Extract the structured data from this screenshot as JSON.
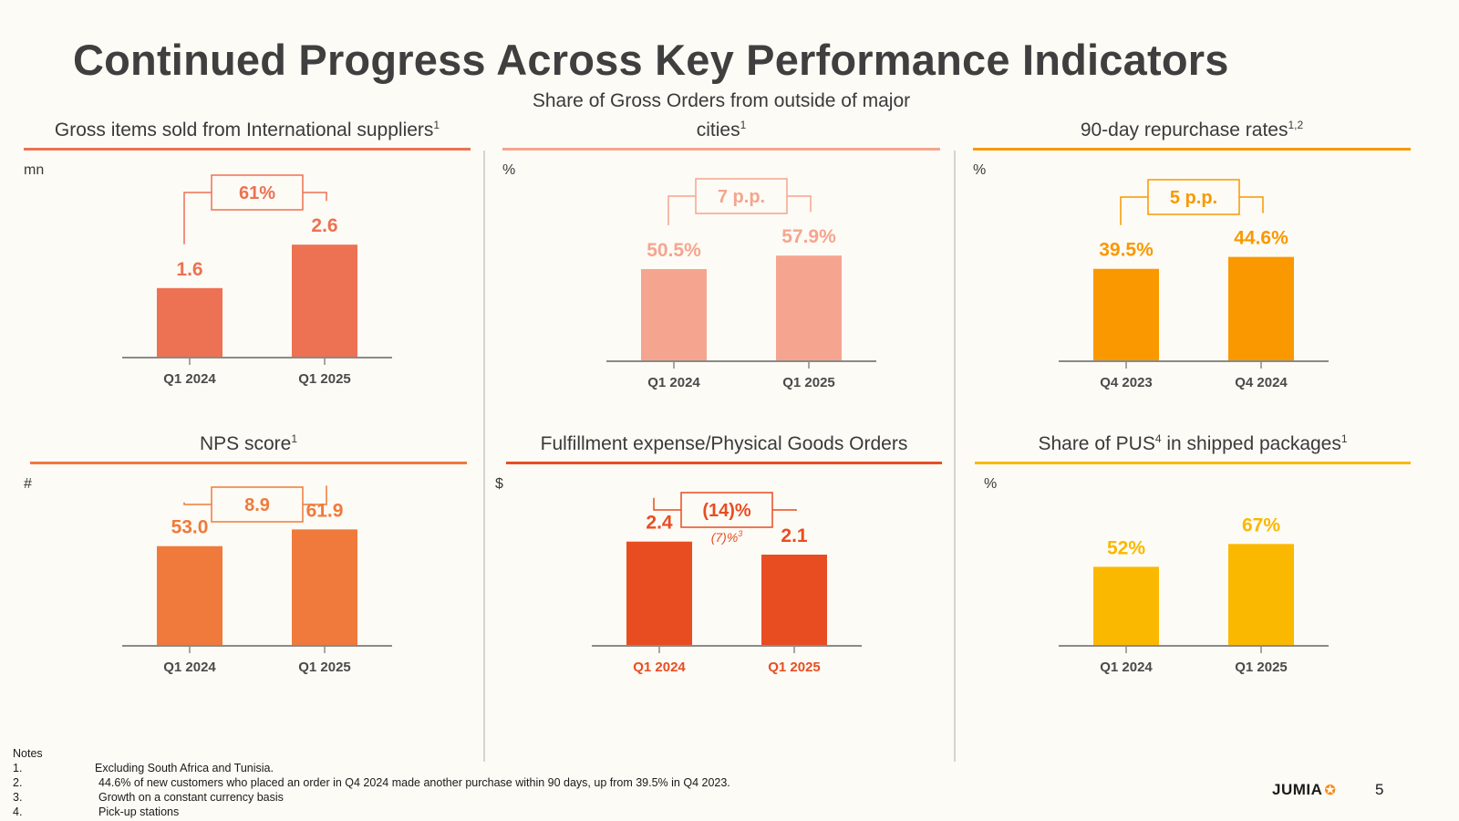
{
  "page": {
    "title": "Continued Progress Across Key Performance Indicators",
    "page_number": "5"
  },
  "logo": {
    "text": "JUMIA",
    "icon": "jumia-star-icon"
  },
  "colors": {
    "gross_items": "#ed7153",
    "share_orders": "#f5a58f",
    "repurchase": "#fa9800",
    "nps": "#ef7a3b",
    "fulfillment": "#e84d22",
    "pus": "#fbb800",
    "axis": "#8a8a8a"
  },
  "notes": {
    "heading": "Notes",
    "items": [
      {
        "num": "1.",
        "text": "Excluding South Africa and Tunisia."
      },
      {
        "num": "2.",
        "text": "44.6% of new customers who placed an order in Q4 2024 made another purchase within 90 days, up from 39.5% in Q4 2023."
      },
      {
        "num": "3.",
        "text": "Growth on a constant currency basis"
      },
      {
        "num": "4.",
        "text": "Pick-up stations"
      }
    ]
  },
  "chart_data": [
    {
      "type": "bar",
      "title": "Gross items sold from International suppliers",
      "title_sup": "1",
      "unit": "mn",
      "categories": [
        "Q1 2024",
        "Q1 2025"
      ],
      "values": [
        1.6,
        2.6
      ],
      "labels": [
        "1.6",
        "2.6"
      ],
      "change": "61%",
      "change_note": "",
      "ylim": [
        0,
        4.2
      ],
      "color_key": "gross_items",
      "tick_color_key": ""
    },
    {
      "type": "bar",
      "title": "Share of Gross Orders from outside of major cities",
      "title_sup": "1",
      "unit": "%",
      "categories": [
        "Q1 2024",
        "Q1 2025"
      ],
      "values": [
        50.5,
        57.9
      ],
      "labels": [
        "50.5%",
        "57.9%"
      ],
      "change": "7 p.p.",
      "change_note": "",
      "ylim": [
        0,
        100
      ],
      "color_key": "share_orders",
      "tick_color_key": ""
    },
    {
      "type": "bar",
      "title": "90-day repurchase rates",
      "title_sup": "1,2",
      "unit": "%",
      "categories": [
        "Q4 2023",
        "Q4 2024"
      ],
      "values": [
        39.5,
        44.6
      ],
      "labels": [
        "39.5%",
        "44.6%"
      ],
      "change": "5 p.p.",
      "change_note": "",
      "ylim": [
        0,
        78
      ],
      "color_key": "repurchase",
      "tick_color_key": ""
    },
    {
      "type": "bar",
      "title": "NPS score",
      "title_sup": "1",
      "unit": "#",
      "categories": [
        "Q1 2024",
        "Q1 2025"
      ],
      "values": [
        53.0,
        61.9
      ],
      "labels": [
        "53.0",
        "61.9"
      ],
      "change": "8.9",
      "change_note": "",
      "ylim": [
        0,
        97
      ],
      "color_key": "nps",
      "tick_color_key": ""
    },
    {
      "type": "bar",
      "title": "Fulfillment expense/Physical Goods Orders",
      "title_sup": "",
      "unit": "$",
      "categories": [
        "Q1 2024",
        "Q1 2025"
      ],
      "values": [
        2.4,
        2.1
      ],
      "labels": [
        "2.4",
        "2.1"
      ],
      "change": "(14)%",
      "change_note": "(7)%",
      "change_note_sup": "3",
      "ylim": [
        0,
        4.2
      ],
      "color_key": "fulfillment",
      "tick_color_key": "fulfillment"
    },
    {
      "type": "bar",
      "title": "Share of PUS",
      "title_sup": "4",
      "title_suffix": " in shipped packages",
      "title_suffix_sup": "1",
      "unit": "%",
      "categories": [
        "Q1 2024",
        "Q1 2025"
      ],
      "values": [
        52,
        67
      ],
      "labels": [
        "52%",
        "67%"
      ],
      "change": "",
      "change_note": "",
      "ylim": [
        0,
        120
      ],
      "color_key": "pus",
      "tick_color_key": ""
    }
  ]
}
